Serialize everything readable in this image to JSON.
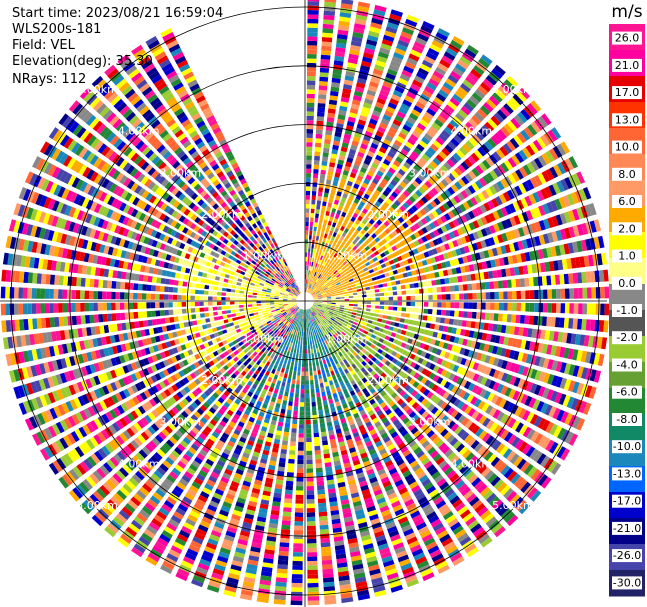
{
  "header": {
    "start_time": "Start time: 2023/08/21 16:59:04",
    "site": "WLS200s-181",
    "field": "Field: VEL",
    "elevation": "Elevation(deg): 35.30",
    "nrays": "NRays: 112"
  },
  "chart_data": {
    "type": "heatmap",
    "projection": "polar-ppi",
    "field": "VEL",
    "units": "m/s",
    "nrays": 112,
    "elevation_deg": 35.3,
    "range_ring_labels_km": [
      "1.00km",
      "2.00km",
      "3.00km",
      "4.00km",
      "5.00km"
    ],
    "range_rings_km": [
      1,
      2,
      3,
      4,
      5
    ],
    "max_range_km": 5.2,
    "missing_sector_deg": [
      333,
      359
    ],
    "colorbar": {
      "label": "m/s",
      "min": -30.0,
      "max": 30.0,
      "tick_labels": [
        "26.0",
        "21.0",
        "17.0",
        "13.0",
        "10.0",
        "8.0",
        "6.0",
        "2.0",
        "1.0",
        "0.0",
        "-1.0",
        "-2.0",
        "-4.0",
        "-6.0",
        "-8.0",
        "-10.0",
        "-13.0",
        "-17.0",
        "-21.0",
        "-26.0",
        "-30.0"
      ],
      "colors": [
        "#ff1493",
        "#ff00a0",
        "#e60000",
        "#ff3300",
        "#ff6633",
        "#ff8855",
        "#ff9966",
        "#ffaa00",
        "#ffff00",
        "#ffff88",
        "#888888",
        "#555555",
        "#99cc33",
        "#66a033",
        "#228833",
        "#118866",
        "#1a88bb",
        "#0066ff",
        "#0000cc",
        "#000088",
        "#4444aa",
        "#222266"
      ]
    },
    "near_field_pattern": [
      {
        "sector_deg": [
          10,
          80
        ],
        "values_ms": [
          8.0,
          10.0
        ]
      },
      {
        "sector_deg": [
          80,
          100
        ],
        "values_ms": [
          2.0,
          6.0
        ]
      },
      {
        "sector_deg": [
          100,
          150
        ],
        "values_ms": [
          -2.0,
          -6.0
        ]
      },
      {
        "sector_deg": [
          150,
          210
        ],
        "values_ms": [
          -10.0,
          -17.0
        ]
      },
      {
        "sector_deg": [
          240,
          300
        ],
        "values_ms": [
          2.0,
          8.0
        ]
      }
    ]
  }
}
